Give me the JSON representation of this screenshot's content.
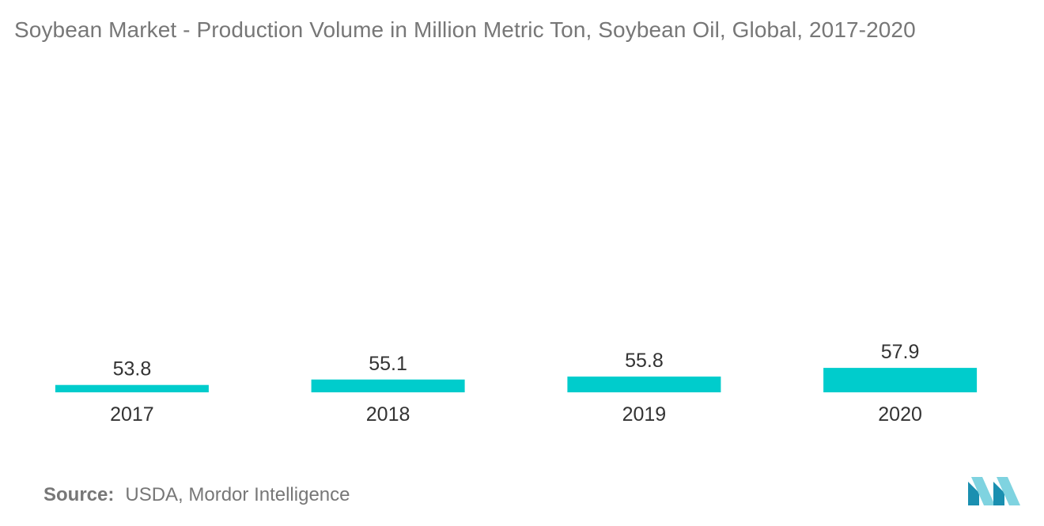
{
  "title": "Soybean Market - Production Volume in Million Metric Ton, Soybean Oil, Global, 2017-2020",
  "source": {
    "label": "Source:",
    "text": "USDA, Mordor Intelligence"
  },
  "colors": {
    "bar": "#00CCCC",
    "text": "#333333",
    "muted": "#777777",
    "logo_light": "#7FD3E0",
    "logo_dark": "#1A8FB0"
  },
  "logo_icon": "mordor-intelligence-logo-icon",
  "chart_data": {
    "type": "bar",
    "categories": [
      "2017",
      "2018",
      "2019",
      "2020"
    ],
    "values": [
      53.8,
      55.1,
      55.8,
      57.9
    ],
    "data_labels": [
      "53.8",
      "55.1",
      "55.8",
      "57.9"
    ],
    "title": "Soybean Market - Production Volume in Million Metric Ton, Soybean Oil, Global, 2017-2020",
    "xlabel": "",
    "ylabel": "",
    "grid": false,
    "legend": "none"
  }
}
